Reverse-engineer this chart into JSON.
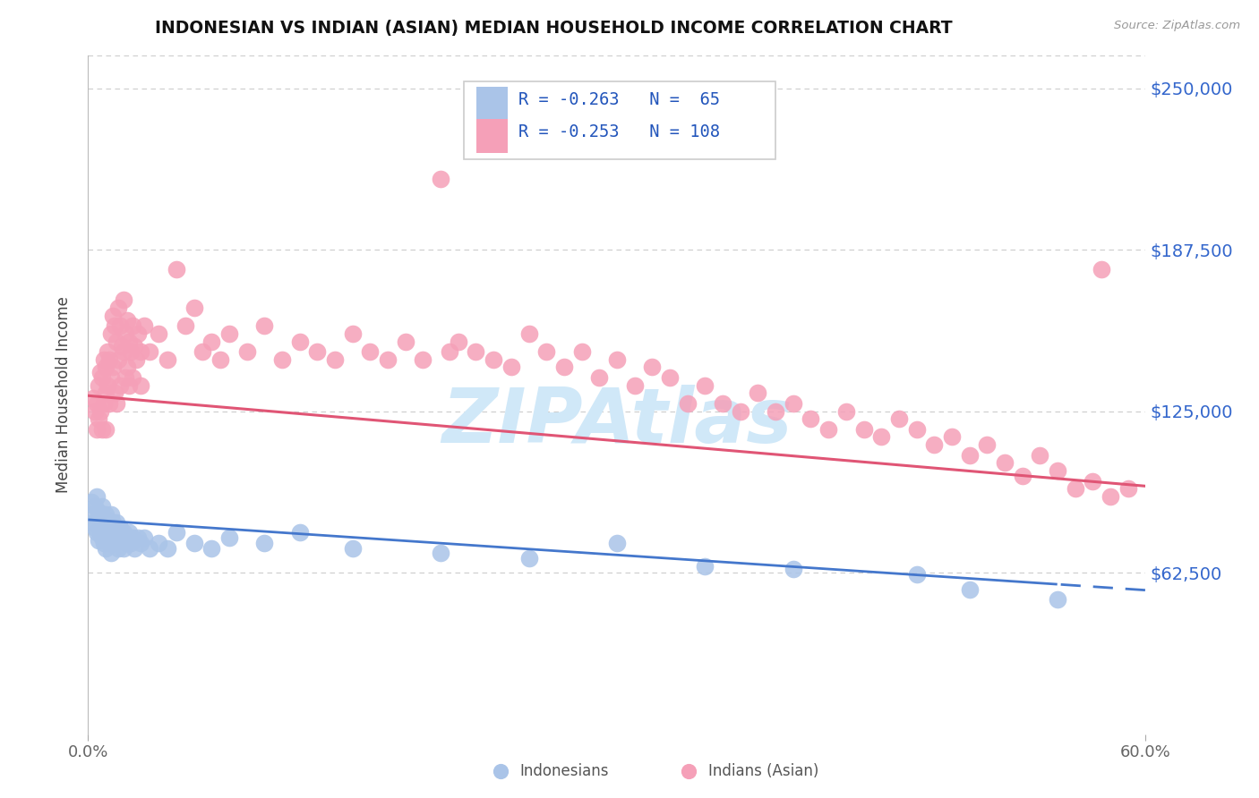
{
  "title": "INDONESIAN VS INDIAN (ASIAN) MEDIAN HOUSEHOLD INCOME CORRELATION CHART",
  "source": "Source: ZipAtlas.com",
  "ylabel": "Median Household Income",
  "xlim": [
    0.0,
    60.0
  ],
  "ylim": [
    0,
    262500
  ],
  "yticks": [
    0,
    62500,
    125000,
    187500,
    250000
  ],
  "ytick_labels": [
    "",
    "$62,500",
    "$125,000",
    "$187,500",
    "$250,000"
  ],
  "indonesian_color": "#aac4e8",
  "indian_color": "#f5a0b8",
  "line_indonesian_color": "#4477cc",
  "line_indian_color": "#e05575",
  "watermark": "ZIPAtlas",
  "watermark_color": "#d0e8f8",
  "indonesian_xy": [
    [
      0.2,
      90000
    ],
    [
      0.3,
      85000
    ],
    [
      0.3,
      82000
    ],
    [
      0.4,
      88000
    ],
    [
      0.4,
      80000
    ],
    [
      0.5,
      92000
    ],
    [
      0.5,
      78000
    ],
    [
      0.6,
      86000
    ],
    [
      0.6,
      75000
    ],
    [
      0.7,
      84000
    ],
    [
      0.7,
      79000
    ],
    [
      0.8,
      88000
    ],
    [
      0.8,
      76000
    ],
    [
      0.9,
      82000
    ],
    [
      0.9,
      74000
    ],
    [
      1.0,
      85000
    ],
    [
      1.0,
      78000
    ],
    [
      1.0,
      72000
    ],
    [
      1.1,
      83000
    ],
    [
      1.1,
      76000
    ],
    [
      1.2,
      80000
    ],
    [
      1.2,
      74000
    ],
    [
      1.3,
      85000
    ],
    [
      1.3,
      78000
    ],
    [
      1.3,
      70000
    ],
    [
      1.4,
      82000
    ],
    [
      1.4,
      76000
    ],
    [
      1.5,
      80000
    ],
    [
      1.5,
      74000
    ],
    [
      1.6,
      82000
    ],
    [
      1.6,
      76000
    ],
    [
      1.7,
      78000
    ],
    [
      1.7,
      72000
    ],
    [
      1.8,
      80000
    ],
    [
      1.9,
      75000
    ],
    [
      2.0,
      78000
    ],
    [
      2.0,
      72000
    ],
    [
      2.1,
      76000
    ],
    [
      2.2,
      74000
    ],
    [
      2.3,
      78000
    ],
    [
      2.4,
      74000
    ],
    [
      2.5,
      76000
    ],
    [
      2.6,
      72000
    ],
    [
      2.8,
      76000
    ],
    [
      3.0,
      74000
    ],
    [
      3.2,
      76000
    ],
    [
      3.5,
      72000
    ],
    [
      4.0,
      74000
    ],
    [
      4.5,
      72000
    ],
    [
      5.0,
      78000
    ],
    [
      6.0,
      74000
    ],
    [
      7.0,
      72000
    ],
    [
      8.0,
      76000
    ],
    [
      10.0,
      74000
    ],
    [
      12.0,
      78000
    ],
    [
      15.0,
      72000
    ],
    [
      20.0,
      70000
    ],
    [
      25.0,
      68000
    ],
    [
      30.0,
      74000
    ],
    [
      35.0,
      65000
    ],
    [
      40.0,
      64000
    ],
    [
      47.0,
      62000
    ],
    [
      50.0,
      56000
    ],
    [
      55.0,
      52000
    ]
  ],
  "indian_xy": [
    [
      0.3,
      130000
    ],
    [
      0.4,
      125000
    ],
    [
      0.5,
      128000
    ],
    [
      0.5,
      118000
    ],
    [
      0.6,
      135000
    ],
    [
      0.6,
      122000
    ],
    [
      0.7,
      140000
    ],
    [
      0.7,
      125000
    ],
    [
      0.8,
      138000
    ],
    [
      0.8,
      118000
    ],
    [
      0.9,
      145000
    ],
    [
      0.9,
      128000
    ],
    [
      1.0,
      142000
    ],
    [
      1.0,
      132000
    ],
    [
      1.0,
      118000
    ],
    [
      1.1,
      148000
    ],
    [
      1.1,
      135000
    ],
    [
      1.2,
      145000
    ],
    [
      1.2,
      128000
    ],
    [
      1.3,
      155000
    ],
    [
      1.3,
      138000
    ],
    [
      1.4,
      162000
    ],
    [
      1.4,
      142000
    ],
    [
      1.5,
      158000
    ],
    [
      1.5,
      132000
    ],
    [
      1.6,
      152000
    ],
    [
      1.6,
      128000
    ],
    [
      1.7,
      165000
    ],
    [
      1.7,
      145000
    ],
    [
      1.8,
      158000
    ],
    [
      1.8,
      135000
    ],
    [
      1.9,
      150000
    ],
    [
      2.0,
      168000
    ],
    [
      2.0,
      148000
    ],
    [
      2.1,
      155000
    ],
    [
      2.1,
      138000
    ],
    [
      2.2,
      160000
    ],
    [
      2.2,
      142000
    ],
    [
      2.3,
      152000
    ],
    [
      2.3,
      135000
    ],
    [
      2.4,
      148000
    ],
    [
      2.5,
      158000
    ],
    [
      2.5,
      138000
    ],
    [
      2.6,
      150000
    ],
    [
      2.7,
      145000
    ],
    [
      2.8,
      155000
    ],
    [
      3.0,
      148000
    ],
    [
      3.0,
      135000
    ],
    [
      3.2,
      158000
    ],
    [
      3.5,
      148000
    ],
    [
      4.0,
      155000
    ],
    [
      4.5,
      145000
    ],
    [
      5.0,
      180000
    ],
    [
      5.5,
      158000
    ],
    [
      6.0,
      165000
    ],
    [
      6.5,
      148000
    ],
    [
      7.0,
      152000
    ],
    [
      7.5,
      145000
    ],
    [
      8.0,
      155000
    ],
    [
      9.0,
      148000
    ],
    [
      10.0,
      158000
    ],
    [
      11.0,
      145000
    ],
    [
      12.0,
      152000
    ],
    [
      13.0,
      148000
    ],
    [
      14.0,
      145000
    ],
    [
      15.0,
      155000
    ],
    [
      16.0,
      148000
    ],
    [
      17.0,
      145000
    ],
    [
      18.0,
      152000
    ],
    [
      19.0,
      145000
    ],
    [
      20.0,
      215000
    ],
    [
      20.5,
      148000
    ],
    [
      21.0,
      152000
    ],
    [
      22.0,
      148000
    ],
    [
      23.0,
      145000
    ],
    [
      24.0,
      142000
    ],
    [
      25.0,
      155000
    ],
    [
      26.0,
      148000
    ],
    [
      27.0,
      142000
    ],
    [
      28.0,
      148000
    ],
    [
      29.0,
      138000
    ],
    [
      30.0,
      145000
    ],
    [
      31.0,
      135000
    ],
    [
      32.0,
      142000
    ],
    [
      33.0,
      138000
    ],
    [
      34.0,
      128000
    ],
    [
      35.0,
      135000
    ],
    [
      36.0,
      128000
    ],
    [
      37.0,
      125000
    ],
    [
      38.0,
      132000
    ],
    [
      39.0,
      125000
    ],
    [
      40.0,
      128000
    ],
    [
      41.0,
      122000
    ],
    [
      42.0,
      118000
    ],
    [
      43.0,
      125000
    ],
    [
      44.0,
      118000
    ],
    [
      45.0,
      115000
    ],
    [
      46.0,
      122000
    ],
    [
      47.0,
      118000
    ],
    [
      48.0,
      112000
    ],
    [
      49.0,
      115000
    ],
    [
      50.0,
      108000
    ],
    [
      51.0,
      112000
    ],
    [
      52.0,
      105000
    ],
    [
      53.0,
      100000
    ],
    [
      54.0,
      108000
    ],
    [
      55.0,
      102000
    ],
    [
      56.0,
      95000
    ],
    [
      57.0,
      98000
    ],
    [
      58.0,
      92000
    ],
    [
      59.0,
      95000
    ],
    [
      57.5,
      180000
    ]
  ]
}
